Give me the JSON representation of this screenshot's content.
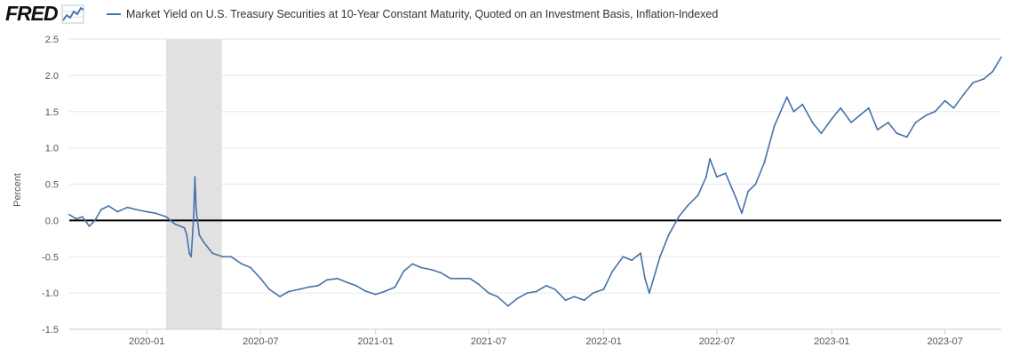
{
  "header": {
    "logo_text": "FRED",
    "legend_label": "Market Yield on U.S. Treasury Securities at 10-Year Constant Maturity, Quoted on an Investment Basis, Inflation-Indexed"
  },
  "colors": {
    "series": "#4572a7",
    "recession": "#e1e1e1",
    "zero_line": "#000000",
    "grid": "#e6e6e6"
  },
  "chart_data": {
    "type": "line",
    "title": "",
    "ylabel": "Percent",
    "xlabel": "",
    "x_range": [
      "2019-08-30",
      "2023-09-29"
    ],
    "ylim": [
      -1.5,
      2.5
    ],
    "yticks": [
      2.5,
      2.0,
      1.5,
      1.0,
      0.5,
      0.0,
      -0.5,
      -1.0,
      -1.5
    ],
    "ytick_labels": [
      "2.5",
      "2.0",
      "1.5",
      "1.0",
      "0.5",
      "0.0",
      "-0.5",
      "-1.0",
      "-1.5"
    ],
    "xticks": [
      "2020-01-01",
      "2020-07-01",
      "2021-01-01",
      "2021-07-01",
      "2022-01-01",
      "2022-07-01",
      "2023-01-01",
      "2023-07-01"
    ],
    "xtick_labels": [
      "2020-01",
      "2020-07",
      "2021-01",
      "2021-07",
      "2022-01",
      "2022-07",
      "2023-01",
      "2023-07"
    ],
    "zero_line": 0,
    "recession": {
      "start": "2020-02-01",
      "end": "2020-04-30"
    },
    "grid": true,
    "series": [
      {
        "x": [
          "2019-08-30",
          "2019-09-10",
          "2019-09-20",
          "2019-10-01",
          "2019-10-10",
          "2019-10-20",
          "2019-11-01",
          "2019-11-15",
          "2019-12-01",
          "2019-12-15",
          "2020-01-01",
          "2020-01-15",
          "2020-02-01",
          "2020-02-15",
          "2020-03-01",
          "2020-03-05",
          "2020-03-09",
          "2020-03-12",
          "2020-03-16",
          "2020-03-18",
          "2020-03-20",
          "2020-03-25",
          "2020-04-01",
          "2020-04-15",
          "2020-05-01",
          "2020-05-15",
          "2020-06-01",
          "2020-06-15",
          "2020-07-01",
          "2020-07-15",
          "2020-08-01",
          "2020-08-15",
          "2020-09-01",
          "2020-09-15",
          "2020-10-01",
          "2020-10-15",
          "2020-11-01",
          "2020-11-15",
          "2020-12-01",
          "2020-12-15",
          "2021-01-01",
          "2021-01-15",
          "2021-02-01",
          "2021-02-15",
          "2021-03-01",
          "2021-03-15",
          "2021-04-01",
          "2021-04-15",
          "2021-05-01",
          "2021-05-15",
          "2021-06-01",
          "2021-06-15",
          "2021-07-01",
          "2021-07-15",
          "2021-08-01",
          "2021-08-15",
          "2021-09-01",
          "2021-09-15",
          "2021-10-01",
          "2021-10-15",
          "2021-11-01",
          "2021-11-15",
          "2021-12-01",
          "2021-12-15",
          "2022-01-01",
          "2022-01-15",
          "2022-02-01",
          "2022-02-15",
          "2022-03-01",
          "2022-03-08",
          "2022-03-15",
          "2022-04-01",
          "2022-04-15",
          "2022-05-01",
          "2022-05-15",
          "2022-06-01",
          "2022-06-14",
          "2022-06-20",
          "2022-07-01",
          "2022-07-15",
          "2022-08-01",
          "2022-08-10",
          "2022-08-20",
          "2022-09-01",
          "2022-09-15",
          "2022-10-01",
          "2022-10-21",
          "2022-11-01",
          "2022-11-15",
          "2022-12-01",
          "2022-12-15",
          "2023-01-01",
          "2023-01-15",
          "2023-02-01",
          "2023-02-15",
          "2023-03-01",
          "2023-03-15",
          "2023-04-01",
          "2023-04-15",
          "2023-05-01",
          "2023-05-15",
          "2023-06-01",
          "2023-06-15",
          "2023-07-01",
          "2023-07-15",
          "2023-08-01",
          "2023-08-15",
          "2023-09-01",
          "2023-09-15",
          "2023-09-29"
        ],
        "y": [
          0.08,
          0.02,
          0.05,
          -0.08,
          0.0,
          0.15,
          0.2,
          0.12,
          0.18,
          0.15,
          0.12,
          0.1,
          0.05,
          -0.05,
          -0.1,
          -0.2,
          -0.45,
          -0.5,
          0.05,
          0.6,
          0.15,
          -0.2,
          -0.3,
          -0.45,
          -0.5,
          -0.5,
          -0.6,
          -0.65,
          -0.8,
          -0.95,
          -1.05,
          -0.98,
          -0.95,
          -0.92,
          -0.9,
          -0.82,
          -0.8,
          -0.85,
          -0.9,
          -0.97,
          -1.02,
          -0.98,
          -0.92,
          -0.7,
          -0.6,
          -0.65,
          -0.68,
          -0.72,
          -0.8,
          -0.8,
          -0.8,
          -0.88,
          -1.0,
          -1.05,
          -1.18,
          -1.08,
          -1.0,
          -0.98,
          -0.9,
          -0.95,
          -1.1,
          -1.05,
          -1.1,
          -1.0,
          -0.95,
          -0.7,
          -0.5,
          -0.55,
          -0.45,
          -0.8,
          -1.0,
          -0.5,
          -0.2,
          0.05,
          0.2,
          0.35,
          0.6,
          0.85,
          0.6,
          0.65,
          0.3,
          0.1,
          0.4,
          0.5,
          0.8,
          1.3,
          1.7,
          1.5,
          1.6,
          1.35,
          1.2,
          1.4,
          1.55,
          1.35,
          1.45,
          1.55,
          1.25,
          1.35,
          1.2,
          1.15,
          1.35,
          1.45,
          1.5,
          1.65,
          1.55,
          1.75,
          1.9,
          1.95,
          2.05,
          2.25
        ]
      }
    ]
  }
}
